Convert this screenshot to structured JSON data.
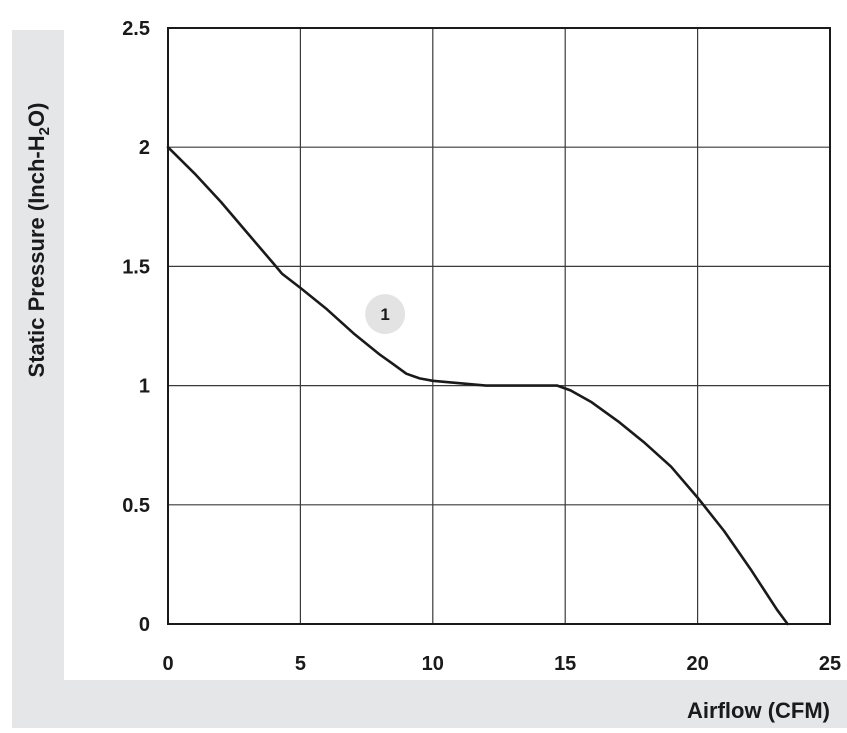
{
  "chart_data": {
    "type": "line",
    "xlabel": "Airflow (CFM)",
    "ylabel_prefix": "Static Pressure (Inch-H",
    "ylabel_sub": "2",
    "ylabel_suffix": "O)",
    "xlim": [
      0,
      25
    ],
    "ylim": [
      0,
      2.5
    ],
    "x_ticks": [
      0,
      5,
      10,
      15,
      20,
      25
    ],
    "x_tick_labels": [
      "0",
      "5",
      "10",
      "15",
      "20",
      "25"
    ],
    "y_ticks": [
      0,
      0.5,
      1,
      1.5,
      2,
      2.5
    ],
    "y_tick_labels": [
      "0",
      "0.5",
      "1",
      "1.5",
      "2",
      "2.5"
    ],
    "grid": true,
    "series": [
      {
        "marker_label": "1",
        "marker_at": [
          8.2,
          1.3
        ],
        "x": [
          0,
          1,
          2,
          3,
          4,
          4.3,
          5,
          6,
          7,
          8,
          8.5,
          9,
          9.5,
          10,
          11,
          12,
          13,
          14,
          14.7,
          15.2,
          16,
          17,
          18,
          19,
          20,
          21,
          22,
          23,
          23.4
        ],
        "y": [
          2.0,
          1.89,
          1.77,
          1.64,
          1.51,
          1.47,
          1.41,
          1.32,
          1.22,
          1.13,
          1.09,
          1.05,
          1.03,
          1.02,
          1.01,
          1.0,
          1.0,
          1.0,
          1.0,
          0.98,
          0.93,
          0.85,
          0.76,
          0.66,
          0.53,
          0.39,
          0.23,
          0.06,
          0.0
        ]
      }
    ],
    "colors": {
      "line": "#1a1a1a",
      "grid": "#3a3a3a",
      "axis_band": "#e5e6e8",
      "marker_bg": "#e3e3e3"
    }
  }
}
